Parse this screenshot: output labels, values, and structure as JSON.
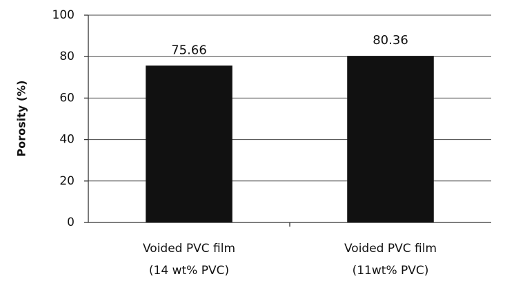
{
  "chart_data": {
    "type": "bar",
    "ylabel": "Porosity (%)",
    "categories": [
      [
        "Voided PVC film",
        "(14 wt% PVC)"
      ],
      [
        "Voided PVC film",
        "(11wt% PVC)"
      ]
    ],
    "values": [
      75.66,
      80.36
    ],
    "color": "#111111",
    "ylim": [
      0,
      100
    ],
    "yticks": [
      0,
      20,
      40,
      60,
      80,
      100
    ],
    "grid": true
  }
}
